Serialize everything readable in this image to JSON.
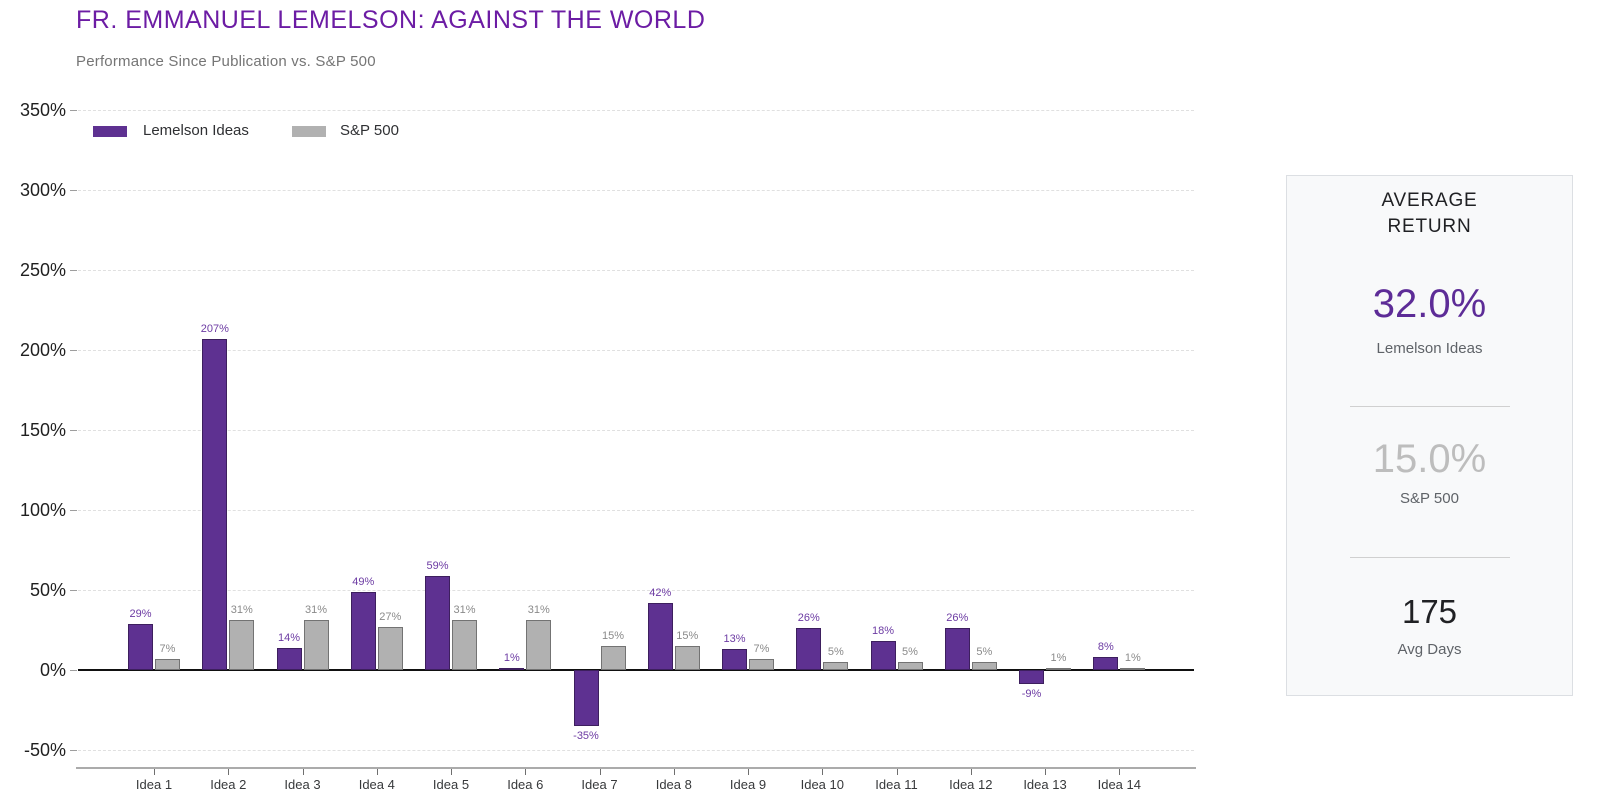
{
  "header": {
    "title": "FR. EMMANUEL LEMELSON: AGAINST THE WORLD",
    "subtitle": "Performance Since Publication vs. S&P 500"
  },
  "legend": {
    "items": [
      {
        "label": "Lemelson Ideas",
        "color": "#5E3191"
      },
      {
        "label": "S&P 500",
        "color": "#B1B1B1"
      }
    ]
  },
  "chart_data": {
    "type": "bar",
    "title": "FR. EMMANUEL LEMELSON: AGAINST THE WORLD",
    "subtitle": "Performance Since Publication vs. S&P 500",
    "categories": [
      "Idea 1",
      "Idea 2",
      "Idea 3",
      "Idea 4",
      "Idea 5",
      "Idea 6",
      "Idea 7",
      "Idea 8",
      "Idea 9",
      "Idea 10",
      "Idea 11",
      "Idea 12",
      "Idea 13",
      "Idea 14"
    ],
    "series": [
      {
        "name": "Lemelson Ideas",
        "color": "#5E3191",
        "label_color": "#6C3BA3",
        "values": [
          29,
          207,
          14,
          49,
          59,
          1,
          -35,
          42,
          13,
          26,
          18,
          26,
          -9,
          8
        ]
      },
      {
        "name": "S&P 500",
        "color": "#B1B1B1",
        "label_color": "#8a8a8a",
        "values": [
          7,
          31,
          31,
          27,
          31,
          31,
          15,
          15,
          7,
          5,
          5,
          5,
          1,
          1
        ]
      }
    ],
    "value_label_format": "percent",
    "y_tick_values": [
      350,
      300,
      250,
      200,
      150,
      100,
      50,
      0,
      -50
    ],
    "y_tick_suffix": "%",
    "ylim": [
      -50,
      350
    ],
    "grid": "horizontal-dashed",
    "legend_position": "top-left"
  },
  "panel": {
    "title": "AVERAGE RETURN",
    "metrics": [
      {
        "value": "32.0%",
        "label": "Lemelson Ideas",
        "color": "#5D2C97"
      },
      {
        "value": "15.0%",
        "label": "S&P 500",
        "color": "#bdbdbd"
      },
      {
        "value": "175",
        "label": "Avg Days",
        "color": "#202124"
      }
    ]
  },
  "colors": {
    "title_purple": "#6C1CA4",
    "bar_purple": "#5E3191",
    "bar_gray": "#B1B1B1",
    "value_label_purple": "#6C3BA3",
    "value_label_gray": "#8a8a8a",
    "gridline": "#e0e0e0",
    "zero_line": "#111111",
    "axis_line": "#ababab"
  }
}
